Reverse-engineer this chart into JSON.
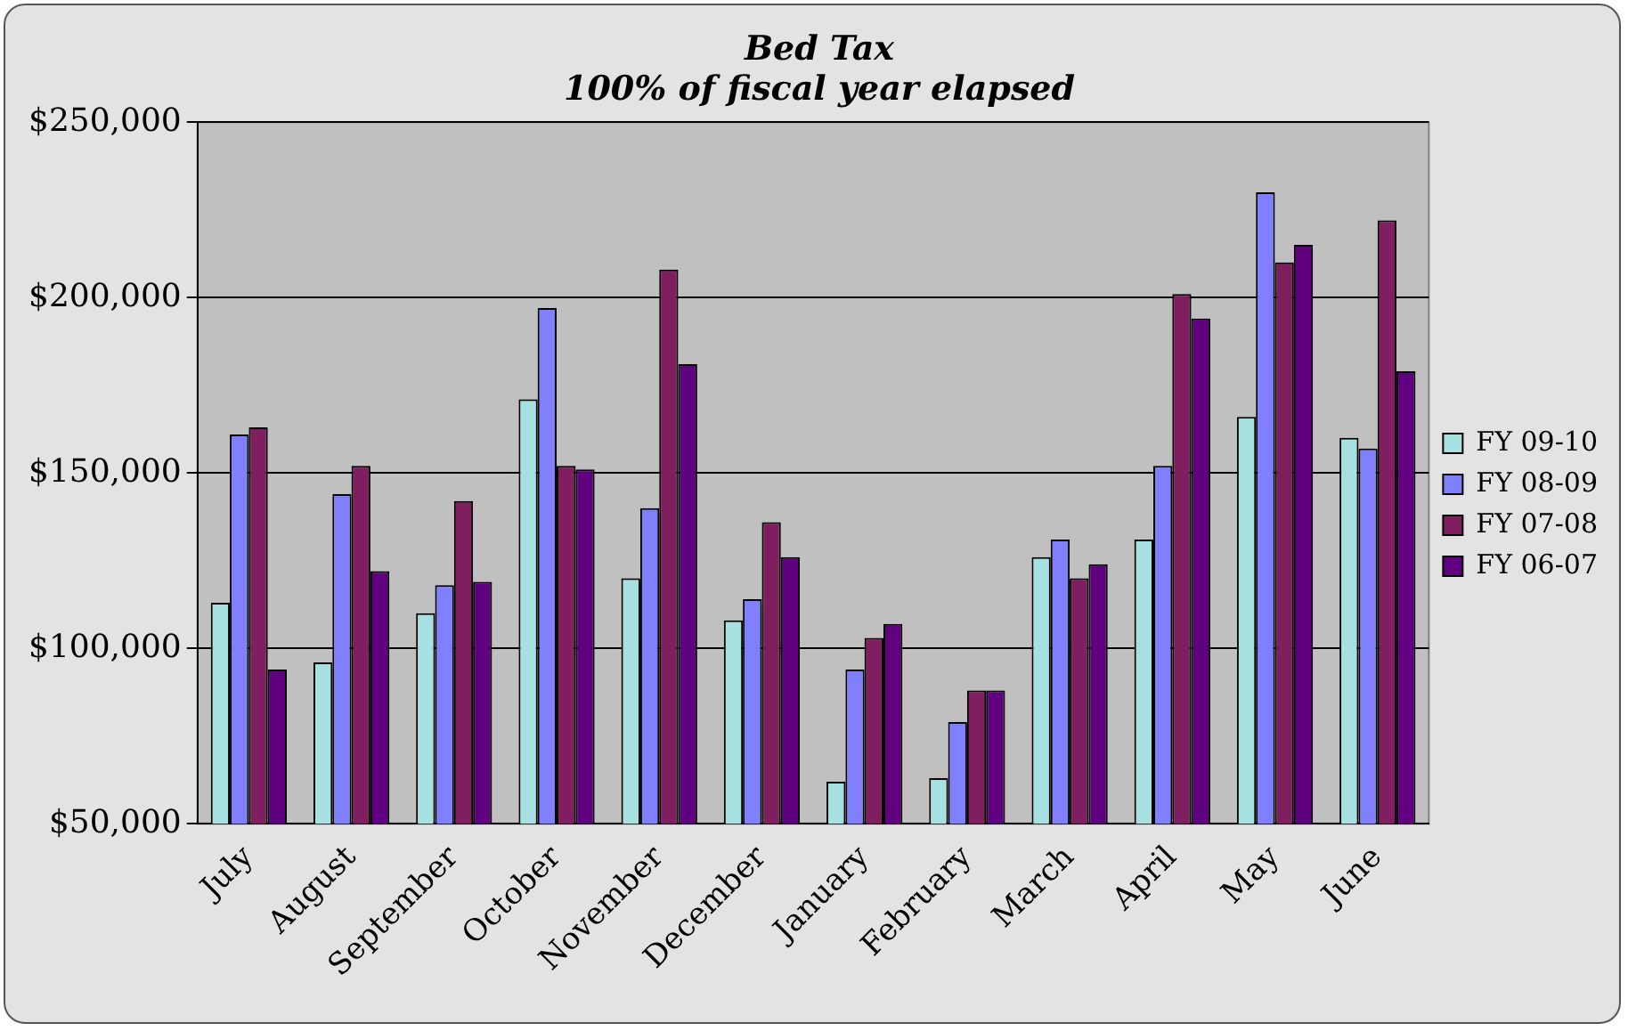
{
  "chart_data": {
    "type": "bar",
    "title": [
      "Bed Tax",
      "100% of fiscal year elapsed"
    ],
    "categories": [
      "July",
      "August",
      "September",
      "October",
      "November",
      "December",
      "January",
      "February",
      "March",
      "April",
      "May",
      "June"
    ],
    "series": [
      {
        "name": "FY 09-10",
        "color": "#a6e0e0",
        "values": [
          113000,
          96000,
          110000,
          171000,
          120000,
          108000,
          62000,
          63000,
          126000,
          131000,
          166000,
          160000
        ]
      },
      {
        "name": "FY 08-09",
        "color": "#8080ff",
        "values": [
          161000,
          144000,
          118000,
          197000,
          140000,
          114000,
          94000,
          79000,
          131000,
          152000,
          230000,
          157000
        ]
      },
      {
        "name": "FY 07-08",
        "color": "#7f1f5f",
        "values": [
          163000,
          152000,
          142000,
          152000,
          208000,
          136000,
          103000,
          88000,
          120000,
          201000,
          210000,
          222000
        ]
      },
      {
        "name": "FY 06-07",
        "color": "#600080",
        "values": [
          94000,
          122000,
          119000,
          151000,
          181000,
          126000,
          107000,
          88000,
          124000,
          194000,
          215000,
          179000
        ]
      }
    ],
    "ylim": [
      50000,
      250000
    ],
    "yticks": [
      {
        "value": 50000,
        "label": "$50,000"
      },
      {
        "value": 100000,
        "label": "$100,000"
      },
      {
        "value": 150000,
        "label": "$150,000"
      },
      {
        "value": 200000,
        "label": "$200,000"
      },
      {
        "value": 250000,
        "label": "$250,000"
      }
    ],
    "grid": "y",
    "legend": "right"
  }
}
